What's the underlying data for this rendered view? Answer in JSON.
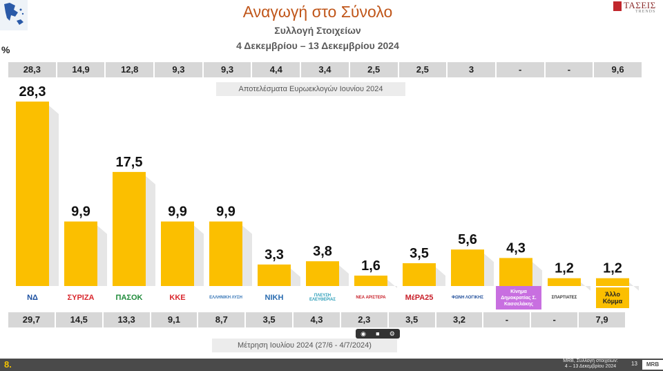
{
  "header": {
    "title": "Αναγωγή στο Σύνολο",
    "subtitle": "Συλλογή Στοιχείων",
    "dates": "4 Δεκεμβρίου – 13 Δεκεμβρίου 2024",
    "unit": "%",
    "logo_text": "ΤΑΣΕΙΣ",
    "logo_sub": "TRENDS"
  },
  "chart_data": {
    "type": "bar",
    "categories": [
      "ΝΔ",
      "ΣΥΡΙΖΑ",
      "ΠΑΣΟΚ",
      "ΚΚΕ",
      "ΕΛΛΗΝΙΚΗ ΛΥΣΗ",
      "ΝΙΚΗ",
      "ΠΛΕΥΣΗ ΕΛΕΥΘΕΡΙΑΣ",
      "ΝΕΑ ΑΡΙΣΤΕΡΑ",
      "ΜέΡΑ25",
      "ΦΩΝΗ ΛΟΓΙΚΗΣ",
      "Κίνημα Δημοκρατίας Σ. Κασσελάκης",
      "ΣΠΑΡΤΙΑΤΕΣ",
      "Άλλο Κόμμα"
    ],
    "values": [
      28.3,
      9.9,
      17.5,
      9.9,
      9.9,
      3.3,
      3.8,
      1.6,
      3.5,
      5.6,
      4.3,
      1.2,
      1.2
    ],
    "value_labels": [
      "28,3",
      "9,9",
      "17,5",
      "9,9",
      "9,9",
      "3,3",
      "3,8",
      "1,6",
      "3,5",
      "5,6",
      "4,3",
      "1,2",
      "1,2"
    ],
    "ylabel": "%",
    "ylim": [
      0,
      30
    ],
    "bar_color": "#fbbf00",
    "euro_results_caption": "Αποτελέσματα Ευρωεκλογών Ιουνίου 2024",
    "euro_results": [
      "28,3",
      "14,9",
      "12,8",
      "9,3",
      "9,3",
      "4,4",
      "3,4",
      "2,5",
      "2,5",
      "3",
      "-",
      "-",
      "9,6"
    ],
    "july_measurement_caption": "Μέτρηση Ιουλίου 2024 (27/6 - 4/7/2024)",
    "july_measurement": [
      "29,7",
      "14,5",
      "13,3",
      "9,1",
      "8,7",
      "3,5",
      "4,3",
      "2,3",
      "3,5",
      "3,2",
      "-",
      "-",
      "7,9"
    ]
  },
  "party_logos": [
    {
      "text": "ΝΔ",
      "color": "#1b4fa0"
    },
    {
      "text": "ΣΥΡΙΖΑ",
      "color": "#d9262c"
    },
    {
      "text": "ΠΑΣΟΚ",
      "color": "#1f8b3a"
    },
    {
      "text": "ΚΚΕ",
      "color": "#d9262c"
    },
    {
      "text": "ΕΛΛΗΝΙΚΗ ΛΥΣΗ",
      "color": "#3a78b8"
    },
    {
      "text": "ΝΙΚΗ",
      "color": "#2a6cb0"
    },
    {
      "text": "ΠΛΕΥΣΗ ΕΛΕΥΘΕΡΙΑΣ",
      "color": "#2a9db8"
    },
    {
      "text": "ΝΕΑ ΑΡΙΣΤΕΡΑ",
      "color": "#c8202a"
    },
    {
      "text": "ΜέΡΑ25",
      "color": "#c8202a"
    },
    {
      "text": "ΦΩΝΗ ΛΟΓΙΚΗΣ",
      "color": "#1f4d9a"
    },
    {
      "text": "Κίνημα Δημοκρατίας Σ. Κασσελάκης",
      "color": "#c86fe0"
    },
    {
      "text": "ΣΠΑΡΤΙΑΤΕΣ",
      "color": "#333333"
    },
    {
      "text": "Άλλο Κόμμα",
      "color": "#fbbf00"
    }
  ],
  "footer": {
    "slide_number": "8.",
    "source_line1": "MRB, Συλλογή στοιχείων:",
    "source_line2": "4 – 13 Δεκεμβρίου 2024",
    "page_number": "13",
    "brand": "MRB"
  }
}
